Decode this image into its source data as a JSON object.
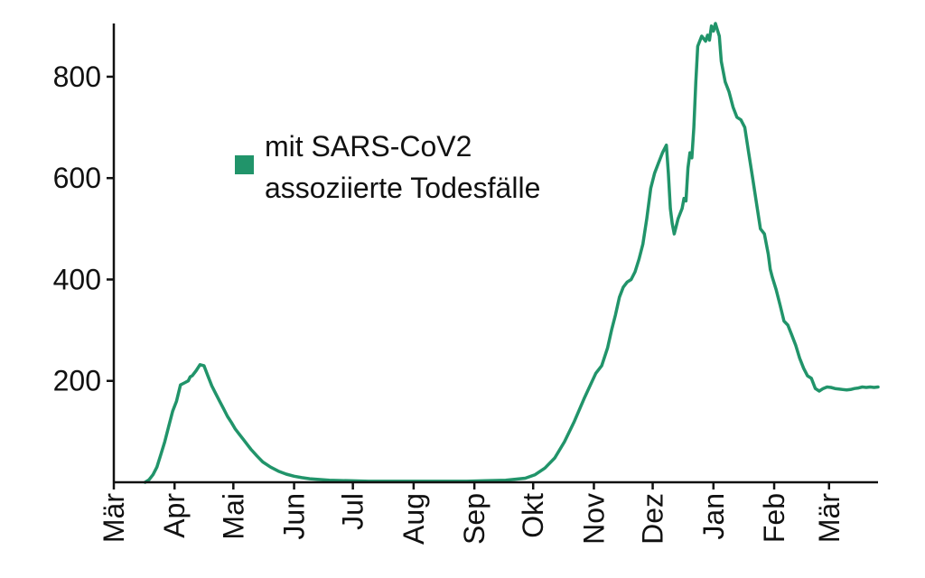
{
  "colors": {
    "series": "#21946a",
    "axis": "#111111",
    "background": "#ffffff"
  },
  "chart_data": {
    "type": "line",
    "title": "",
    "xlabel": "",
    "ylabel": "",
    "legend_position": "top-left, inside plot",
    "grid": false,
    "y_ticks": [
      "200",
      "400",
      "600",
      "800"
    ],
    "y_tick_values": [
      200,
      400,
      600,
      800
    ],
    "ylim": [
      0,
      905
    ],
    "x_ticks": [
      "Mär",
      "Apr",
      "Mai",
      "Jun",
      "Jul",
      "Aug",
      "Sep",
      "Okt",
      "Nov",
      "Dez",
      "Jan",
      "Feb",
      "Mär"
    ],
    "x_tick_days": [
      0,
      31,
      61,
      92,
      122,
      153,
      184,
      214,
      245,
      275,
      306,
      337,
      365
    ],
    "xlim_days": [
      0,
      390
    ],
    "series": [
      {
        "name_lines": [
          "mit SARS-CoV2",
          "assoziierte Todesfälle"
        ],
        "color": "#21946a",
        "x_days": [
          16,
          18,
          20,
          22,
          24,
          26,
          28,
          30,
          32,
          34,
          36,
          38,
          39,
          40,
          42,
          44,
          46,
          48,
          50,
          52,
          54,
          56,
          58,
          60,
          62,
          64,
          66,
          68,
          70,
          73,
          76,
          80,
          84,
          88,
          92,
          96,
          100,
          110,
          120,
          130,
          140,
          150,
          160,
          170,
          180,
          190,
          200,
          205,
          210,
          215,
          220,
          225,
          230,
          235,
          240,
          243,
          246,
          249,
          252,
          254,
          256,
          258,
          260,
          262,
          264,
          266,
          268,
          270,
          272,
          274,
          276,
          278,
          280,
          282,
          283,
          284,
          285,
          286,
          288,
          290,
          291,
          292,
          293,
          294,
          295,
          296,
          297,
          298,
          300,
          302,
          303,
          304,
          305,
          306,
          307,
          309,
          310,
          312,
          314,
          316,
          318,
          320,
          322,
          324,
          326,
          328,
          330,
          332,
          334,
          335,
          336,
          338,
          340,
          342,
          344,
          346,
          348,
          350,
          352,
          354,
          356,
          358,
          360,
          362,
          364,
          366,
          368,
          370,
          372,
          374,
          376,
          378,
          380,
          382,
          384,
          386,
          388,
          390
        ],
        "y": [
          0,
          5,
          15,
          30,
          55,
          80,
          110,
          140,
          160,
          192,
          196,
          200,
          208,
          210,
          220,
          232,
          230,
          210,
          190,
          175,
          160,
          145,
          130,
          118,
          105,
          95,
          85,
          75,
          65,
          52,
          40,
          30,
          22,
          16,
          12,
          9,
          7,
          4,
          3,
          2,
          2,
          2,
          2,
          2,
          2,
          3,
          4,
          6,
          8,
          15,
          28,
          48,
          80,
          120,
          165,
          190,
          215,
          230,
          265,
          300,
          330,
          365,
          385,
          395,
          400,
          415,
          440,
          470,
          520,
          580,
          610,
          630,
          650,
          665,
          610,
          540,
          510,
          490,
          520,
          540,
          560,
          555,
          620,
          650,
          640,
          700,
          790,
          860,
          880,
          870,
          882,
          872,
          900,
          890,
          905,
          880,
          830,
          790,
          770,
          740,
          720,
          715,
          700,
          650,
          600,
          550,
          500,
          490,
          450,
          420,
          405,
          380,
          350,
          318,
          310,
          290,
          270,
          245,
          225,
          210,
          205,
          185,
          180,
          185,
          188,
          187,
          185,
          184,
          183,
          182,
          183,
          185,
          186,
          188,
          187,
          188,
          187,
          188
        ]
      }
    ]
  }
}
